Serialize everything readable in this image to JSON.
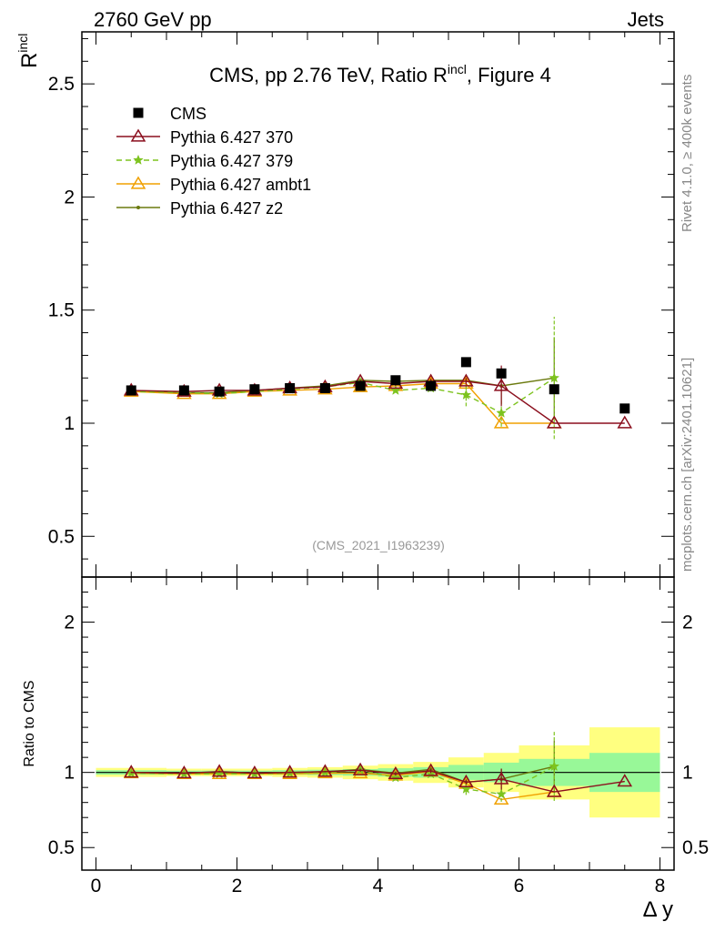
{
  "header": {
    "left": "2760 GeV pp",
    "right": "Jets"
  },
  "side_labels": {
    "rivet": "Rivet 4.1.0, ≥ 400k events",
    "mcplots": "mcplots.cern.ch [arXiv:2401.10621]"
  },
  "chart_data": {
    "type": "line",
    "title": "CMS, pp 2.76 TeV, Ratio R",
    "title_sup": "incl",
    "title_suffix": ", Figure 4",
    "analysis_id": "(CMS_2021_I1963239)",
    "xlabel": "Δ y",
    "ylabel_main": "R",
    "ylabel_main_sup": "incl",
    "ylabel_ratio": "Ratio to CMS",
    "xlim": [
      -0.2,
      8.2
    ],
    "ylim_main": [
      0.32,
      2.73
    ],
    "ylim_ratio": [
      0.35,
      2.3
    ],
    "x_ticks": [
      "0",
      "2",
      "4",
      "6",
      "8"
    ],
    "y_ticks_main": [
      "0.5",
      "1",
      "1.5",
      "2",
      "2.5"
    ],
    "y_ticks_ratio": [
      "0.5",
      "1",
      "2"
    ],
    "colors": {
      "data": "#000000",
      "p370": "#8b0f1e",
      "p379": "#7dc31e",
      "ambt1": "#f0a000",
      "z2": "#6b7a0f",
      "band_yellow": "#ffff80",
      "band_green": "#98f898"
    },
    "data": {
      "name": "CMS",
      "x": [
        0.5,
        1.25,
        1.75,
        2.25,
        2.75,
        3.25,
        3.75,
        4.25,
        4.75,
        5.25,
        5.75,
        6.5,
        7.5
      ],
      "y": [
        1.145,
        1.145,
        1.14,
        1.15,
        1.155,
        1.155,
        1.165,
        1.19,
        1.165,
        1.27,
        1.22,
        1.15,
        1.065
      ]
    },
    "bands": [
      {
        "x0": 0.0,
        "x1": 1.0,
        "yellow": [
          0.97,
          1.03
        ],
        "green": [
          0.985,
          1.015
        ]
      },
      {
        "x0": 1.0,
        "x1": 1.5,
        "yellow": [
          0.975,
          1.025
        ],
        "green": [
          0.988,
          1.012
        ]
      },
      {
        "x0": 1.5,
        "x1": 2.0,
        "yellow": [
          0.975,
          1.025
        ],
        "green": [
          0.988,
          1.012
        ]
      },
      {
        "x0": 2.0,
        "x1": 2.5,
        "yellow": [
          0.975,
          1.025
        ],
        "green": [
          0.988,
          1.012
        ]
      },
      {
        "x0": 2.5,
        "x1": 3.0,
        "yellow": [
          0.97,
          1.03
        ],
        "green": [
          0.985,
          1.015
        ]
      },
      {
        "x0": 3.0,
        "x1": 3.5,
        "yellow": [
          0.965,
          1.035
        ],
        "green": [
          0.982,
          1.018
        ]
      },
      {
        "x0": 3.5,
        "x1": 4.0,
        "yellow": [
          0.955,
          1.045
        ],
        "green": [
          0.978,
          1.022
        ]
      },
      {
        "x0": 4.0,
        "x1": 4.5,
        "yellow": [
          0.945,
          1.055
        ],
        "green": [
          0.972,
          1.028
        ]
      },
      {
        "x0": 4.5,
        "x1": 5.0,
        "yellow": [
          0.93,
          1.07
        ],
        "green": [
          0.965,
          1.035
        ]
      },
      {
        "x0": 5.0,
        "x1": 5.5,
        "yellow": [
          0.9,
          1.1
        ],
        "green": [
          0.95,
          1.05
        ]
      },
      {
        "x0": 5.5,
        "x1": 6.0,
        "yellow": [
          0.87,
          1.13
        ],
        "green": [
          0.935,
          1.065
        ]
      },
      {
        "x0": 6.0,
        "x1": 7.0,
        "yellow": [
          0.82,
          1.18
        ],
        "green": [
          0.91,
          1.09
        ]
      },
      {
        "x0": 7.0,
        "x1": 8.0,
        "yellow": [
          0.7,
          1.3
        ],
        "green": [
          0.87,
          1.13
        ]
      }
    ],
    "series": [
      {
        "key": "p370",
        "name": "Pythia 6.427 370",
        "marker": "triangle-open",
        "dash": "",
        "x": [
          0.5,
          1.25,
          1.75,
          2.25,
          2.75,
          3.25,
          3.75,
          4.25,
          4.75,
          5.25,
          5.75,
          6.5,
          7.5
        ],
        "y": [
          1.145,
          1.14,
          1.145,
          1.145,
          1.155,
          1.16,
          1.185,
          1.175,
          1.185,
          1.185,
          1.165,
          1.0,
          1.0
        ],
        "err": [
          0.005,
          0.005,
          0.005,
          0.005,
          0.005,
          0.006,
          0.008,
          0.01,
          0.012,
          0.015,
          0.09,
          0,
          0
        ],
        "ratio_y": [
          1.0,
          0.995,
          1.005,
          0.995,
          1.0,
          1.005,
          1.015,
          0.99,
          1.01,
          0.935,
          0.955,
          0.87,
          0.94
        ],
        "ratio_err": [
          0.005,
          0.005,
          0.005,
          0.005,
          0.005,
          0.005,
          0.01,
          0.01,
          0.015,
          0.015,
          0.07,
          0,
          0
        ]
      },
      {
        "key": "p379",
        "name": "Pythia 6.427 379",
        "marker": "star",
        "dash": "6,4",
        "x": [
          0.5,
          1.25,
          1.75,
          2.25,
          2.75,
          3.25,
          3.75,
          4.25,
          4.75,
          5.25,
          5.75,
          6.5
        ],
        "y": [
          1.14,
          1.135,
          1.13,
          1.14,
          1.15,
          1.16,
          1.18,
          1.145,
          1.155,
          1.125,
          1.045,
          1.2
        ],
        "err": [
          0.005,
          0.005,
          0.005,
          0.005,
          0.006,
          0.007,
          0.009,
          0.01,
          0.014,
          0.05,
          0.06,
          0.27
        ],
        "ratio_y": [
          0.995,
          0.99,
          0.99,
          0.99,
          0.995,
          1.0,
          1.015,
          0.965,
          0.99,
          0.89,
          0.855,
          1.04
        ],
        "ratio_err": [
          0.005,
          0.005,
          0.005,
          0.005,
          0.005,
          0.006,
          0.01,
          0.01,
          0.015,
          0.04,
          0.05,
          0.23
        ]
      },
      {
        "key": "ambt1",
        "name": "Pythia 6.427 ambt1",
        "marker": "triangle-open",
        "dash": "",
        "x": [
          0.5,
          1.25,
          1.75,
          2.25,
          2.75,
          3.25,
          3.75,
          4.25,
          4.75,
          5.25,
          5.75,
          6.5
        ],
        "y": [
          1.14,
          1.13,
          1.13,
          1.14,
          1.145,
          1.15,
          1.16,
          1.165,
          1.175,
          1.175,
          1.0,
          1.0
        ],
        "err": [
          0.005,
          0.005,
          0.005,
          0.005,
          0.005,
          0.006,
          0.008,
          0.01,
          0.013,
          0.015,
          0,
          0
        ],
        "ratio_y": [
          0.995,
          0.99,
          0.99,
          0.99,
          0.99,
          0.995,
          0.995,
          0.98,
          1.005,
          0.925,
          0.82,
          0.87
        ],
        "ratio_err": [
          0.005,
          0.005,
          0.005,
          0.005,
          0.005,
          0.005,
          0.008,
          0.01,
          0.015,
          0.015,
          0,
          0
        ]
      },
      {
        "key": "z2",
        "name": "Pythia 6.427 z2",
        "marker": "dot",
        "dash": "",
        "x": [
          0.5,
          1.25,
          1.75,
          2.25,
          2.75,
          3.25,
          3.75,
          4.25,
          4.75,
          5.25,
          5.75,
          6.5
        ],
        "y": [
          1.145,
          1.135,
          1.135,
          1.145,
          1.155,
          1.165,
          1.19,
          1.185,
          1.19,
          1.19,
          1.165,
          1.2
        ],
        "err": [
          0.005,
          0.005,
          0.005,
          0.005,
          0.005,
          0.007,
          0.009,
          0.01,
          0.025,
          0.02,
          0.08,
          0.18
        ],
        "ratio_y": [
          1.0,
          0.99,
          0.995,
          0.995,
          1.0,
          1.005,
          1.02,
          0.995,
          1.02,
          0.935,
          0.955,
          1.04
        ],
        "ratio_err": [
          0.005,
          0.005,
          0.005,
          0.005,
          0.005,
          0.006,
          0.01,
          0.01,
          0.02,
          0.02,
          0.07,
          0.17
        ]
      }
    ]
  }
}
